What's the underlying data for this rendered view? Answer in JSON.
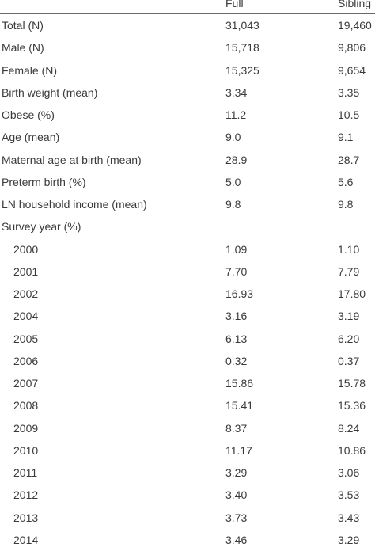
{
  "columns": {
    "label": "",
    "full": "Full",
    "sibling": "Sibling"
  },
  "rows": [
    {
      "label": "Total (N)",
      "full": "31,043",
      "sibling": "19,460"
    },
    {
      "label": "Male (N)",
      "full": "15,718",
      "sibling": "9,806"
    },
    {
      "label": "Female (N)",
      "full": "15,325",
      "sibling": "9,654"
    },
    {
      "label": "Birth weight (mean)",
      "full": "3.34",
      "sibling": "3.35"
    },
    {
      "label": "Obese (%)",
      "full": "11.2",
      "sibling": "10.5"
    },
    {
      "label": "Age (mean)",
      "full": "9.0",
      "sibling": "9.1"
    },
    {
      "label": "Maternal age at birth (mean)",
      "full": "28.9",
      "sibling": "28.7"
    },
    {
      "label": "Preterm birth (%)",
      "full": "5.0",
      "sibling": "5.6"
    },
    {
      "label": "LN household income (mean)",
      "full": "9.8",
      "sibling": "9.8"
    },
    {
      "label": "Survey year (%)",
      "full": "",
      "sibling": ""
    },
    {
      "label": "2000",
      "full": "1.09",
      "sibling": "1.10"
    },
    {
      "label": "2001",
      "full": "7.70",
      "sibling": "7.79"
    },
    {
      "label": "2002",
      "full": "16.93",
      "sibling": "17.80"
    },
    {
      "label": "2004",
      "full": "3.16",
      "sibling": "3.19"
    },
    {
      "label": "2005",
      "full": "6.13",
      "sibling": "6.20"
    },
    {
      "label": "2006",
      "full": "0.32",
      "sibling": "0.37"
    },
    {
      "label": "2007",
      "full": "15.86",
      "sibling": "15.78"
    },
    {
      "label": "2008",
      "full": "15.41",
      "sibling": "15.36"
    },
    {
      "label": "2009",
      "full": "8.37",
      "sibling": "8.24"
    },
    {
      "label": "2010",
      "full": "11.17",
      "sibling": "10.86"
    },
    {
      "label": "2011",
      "full": "3.29",
      "sibling": "3.06"
    },
    {
      "label": "2012",
      "full": "3.40",
      "sibling": "3.53"
    },
    {
      "label": "2013",
      "full": "3.73",
      "sibling": "3.43"
    },
    {
      "label": "2014",
      "full": "3.46",
      "sibling": "3.29"
    }
  ]
}
